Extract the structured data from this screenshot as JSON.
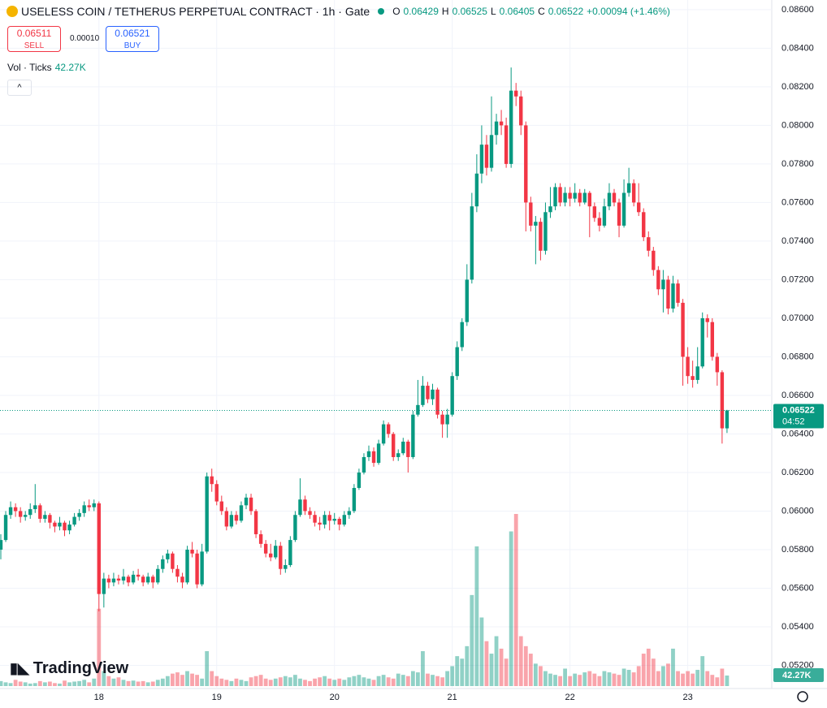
{
  "chart_data": {
    "type": "candlestick",
    "title": "USELESS COIN / TETHERUS PERPETUAL CONTRACT · 1h · Gate",
    "legend": {
      "o_label": "O",
      "o": "0.06429",
      "h_label": "H",
      "h": "0.06525",
      "l_label": "L",
      "l": "0.06405",
      "c_label": "C",
      "c": "0.06522",
      "change": "+0.00094 (+1.46%)"
    },
    "sell": {
      "price": "0.06511",
      "label": "SELL"
    },
    "spread": "0.00010",
    "buy": {
      "price": "0.06521",
      "label": "BUY"
    },
    "volume_title": "Vol · Ticks",
    "volume_label": "42.27K",
    "last_price_label": "0.06522",
    "countdown": "04:52",
    "brand": "TradingView",
    "up_color": "#089981",
    "down_color": "#f23645",
    "ylim": [
      0.0508,
      0.0865
    ],
    "yticks": [
      {
        "value": 0.052,
        "label": "0.05200"
      },
      {
        "value": 0.054,
        "label": "0.05400"
      },
      {
        "value": 0.056,
        "label": "0.05600"
      },
      {
        "value": 0.058,
        "label": "0.05800"
      },
      {
        "value": 0.06,
        "label": "0.06000"
      },
      {
        "value": 0.062,
        "label": "0.06200"
      },
      {
        "value": 0.064,
        "label": "0.06400"
      },
      {
        "value": 0.066,
        "label": "0.06600"
      },
      {
        "value": 0.068,
        "label": "0.06800"
      },
      {
        "value": 0.07,
        "label": "0.07000"
      },
      {
        "value": 0.072,
        "label": "0.07200"
      },
      {
        "value": 0.074,
        "label": "0.07400"
      },
      {
        "value": 0.076,
        "label": "0.07600"
      },
      {
        "value": 0.078,
        "label": "0.07800"
      },
      {
        "value": 0.08,
        "label": "0.08000"
      },
      {
        "value": 0.082,
        "label": "0.08200"
      },
      {
        "value": 0.084,
        "label": "0.08400"
      },
      {
        "value": 0.086,
        "label": "0.08600"
      }
    ],
    "day_labels": [
      "18",
      "19",
      "20",
      "21",
      "22",
      "23"
    ],
    "grid": true,
    "ohlc": [
      [
        0.058,
        0.0588,
        0.0575,
        0.0585
      ],
      [
        0.0585,
        0.06,
        0.0584,
        0.0598
      ],
      [
        0.0598,
        0.0605,
        0.0596,
        0.0602
      ],
      [
        0.0602,
        0.0604,
        0.0597,
        0.06
      ],
      [
        0.06,
        0.0602,
        0.0594,
        0.0597
      ],
      [
        0.0597,
        0.06,
        0.0595,
        0.0598
      ],
      [
        0.0598,
        0.0604,
        0.0596,
        0.0601
      ],
      [
        0.0601,
        0.0614,
        0.0599,
        0.0603
      ],
      [
        0.0603,
        0.0604,
        0.0594,
        0.0596
      ],
      [
        0.0596,
        0.06,
        0.0594,
        0.0598
      ],
      [
        0.0598,
        0.0599,
        0.0591,
        0.0594
      ],
      [
        0.0594,
        0.0595,
        0.0589,
        0.0592
      ],
      [
        0.0592,
        0.0597,
        0.059,
        0.0594
      ],
      [
        0.0594,
        0.0595,
        0.0587,
        0.059
      ],
      [
        0.059,
        0.0595,
        0.0588,
        0.0593
      ],
      [
        0.0593,
        0.0599,
        0.0592,
        0.0597
      ],
      [
        0.0597,
        0.0601,
        0.0595,
        0.0599
      ],
      [
        0.0599,
        0.0605,
        0.0597,
        0.0603
      ],
      [
        0.0603,
        0.0606,
        0.06,
        0.0602
      ],
      [
        0.0602,
        0.0606,
        0.06,
        0.0604
      ],
      [
        0.0604,
        0.0605,
        0.0548,
        0.0557
      ],
      [
        0.0557,
        0.0568,
        0.055,
        0.0565
      ],
      [
        0.0565,
        0.0567,
        0.056,
        0.0563
      ],
      [
        0.0563,
        0.0568,
        0.0561,
        0.0565
      ],
      [
        0.0565,
        0.0567,
        0.0562,
        0.0564
      ],
      [
        0.0564,
        0.057,
        0.0562,
        0.0566
      ],
      [
        0.0566,
        0.0567,
        0.0561,
        0.0563
      ],
      [
        0.0563,
        0.0569,
        0.0562,
        0.0567
      ],
      [
        0.0567,
        0.057,
        0.0564,
        0.0566
      ],
      [
        0.0566,
        0.0567,
        0.0561,
        0.0563
      ],
      [
        0.0563,
        0.0568,
        0.0562,
        0.0566
      ],
      [
        0.0566,
        0.0567,
        0.056,
        0.0563
      ],
      [
        0.0563,
        0.0572,
        0.0562,
        0.057
      ],
      [
        0.057,
        0.0577,
        0.0568,
        0.0575
      ],
      [
        0.0575,
        0.058,
        0.0573,
        0.0578
      ],
      [
        0.0578,
        0.0579,
        0.0568,
        0.057
      ],
      [
        0.057,
        0.0572,
        0.0563,
        0.0566
      ],
      [
        0.0566,
        0.0568,
        0.056,
        0.0563
      ],
      [
        0.0563,
        0.0582,
        0.0562,
        0.058
      ],
      [
        0.058,
        0.0584,
        0.0576,
        0.0578
      ],
      [
        0.0578,
        0.058,
        0.056,
        0.0562
      ],
      [
        0.0562,
        0.0583,
        0.0561,
        0.0579
      ],
      [
        0.0579,
        0.062,
        0.0578,
        0.0618
      ],
      [
        0.0618,
        0.0622,
        0.061,
        0.0614
      ],
      [
        0.0614,
        0.0616,
        0.0603,
        0.0605
      ],
      [
        0.0605,
        0.0608,
        0.0598,
        0.06
      ],
      [
        0.06,
        0.0602,
        0.059,
        0.0592
      ],
      [
        0.0592,
        0.06,
        0.0591,
        0.0598
      ],
      [
        0.0598,
        0.06,
        0.0593,
        0.0595
      ],
      [
        0.0595,
        0.0605,
        0.0594,
        0.0603
      ],
      [
        0.0603,
        0.0609,
        0.0601,
        0.0607
      ],
      [
        0.0607,
        0.0609,
        0.0598,
        0.06
      ],
      [
        0.06,
        0.0601,
        0.0586,
        0.0588
      ],
      [
        0.0588,
        0.059,
        0.0581,
        0.0583
      ],
      [
        0.0583,
        0.0585,
        0.0576,
        0.0578
      ],
      [
        0.0578,
        0.0583,
        0.0574,
        0.0576
      ],
      [
        0.0576,
        0.0585,
        0.0575,
        0.0582
      ],
      [
        0.0582,
        0.0584,
        0.0567,
        0.057
      ],
      [
        0.057,
        0.0575,
        0.0568,
        0.0572
      ],
      [
        0.0572,
        0.0587,
        0.0571,
        0.0585
      ],
      [
        0.0585,
        0.06,
        0.0584,
        0.0598
      ],
      [
        0.0598,
        0.0617,
        0.0597,
        0.0606
      ],
      [
        0.0606,
        0.0608,
        0.0598,
        0.06
      ],
      [
        0.06,
        0.0602,
        0.0596,
        0.0598
      ],
      [
        0.0598,
        0.06,
        0.0592,
        0.0594
      ],
      [
        0.0594,
        0.0597,
        0.059,
        0.0593
      ],
      [
        0.0593,
        0.06,
        0.0591,
        0.0598
      ],
      [
        0.0598,
        0.06,
        0.059,
        0.0595
      ],
      [
        0.0595,
        0.0599,
        0.0593,
        0.0596
      ],
      [
        0.0596,
        0.0597,
        0.059,
        0.0593
      ],
      [
        0.0593,
        0.06,
        0.0592,
        0.0598
      ],
      [
        0.0598,
        0.0602,
        0.0596,
        0.06
      ],
      [
        0.06,
        0.0614,
        0.0599,
        0.0612
      ],
      [
        0.0612,
        0.0622,
        0.0611,
        0.062
      ],
      [
        0.062,
        0.063,
        0.0619,
        0.0628
      ],
      [
        0.0628,
        0.0634,
        0.0626,
        0.0631
      ],
      [
        0.0631,
        0.0633,
        0.0623,
        0.0625
      ],
      [
        0.0625,
        0.0637,
        0.0624,
        0.0635
      ],
      [
        0.0635,
        0.0647,
        0.0634,
        0.0645
      ],
      [
        0.0645,
        0.0646,
        0.0638,
        0.064
      ],
      [
        0.064,
        0.0641,
        0.0626,
        0.0628
      ],
      [
        0.0628,
        0.0632,
        0.0626,
        0.063
      ],
      [
        0.063,
        0.0638,
        0.0629,
        0.0636
      ],
      [
        0.0636,
        0.0637,
        0.062,
        0.0628
      ],
      [
        0.0628,
        0.0652,
        0.0627,
        0.065
      ],
      [
        0.065,
        0.0668,
        0.0649,
        0.0655
      ],
      [
        0.0655,
        0.067,
        0.0654,
        0.0665
      ],
      [
        0.0665,
        0.0667,
        0.0656,
        0.0658
      ],
      [
        0.0658,
        0.0666,
        0.0655,
        0.0663
      ],
      [
        0.0663,
        0.0664,
        0.0648,
        0.065
      ],
      [
        0.065,
        0.0652,
        0.0638,
        0.0645
      ],
      [
        0.0645,
        0.0653,
        0.0638,
        0.065
      ],
      [
        0.065,
        0.0672,
        0.0649,
        0.067
      ],
      [
        0.067,
        0.0688,
        0.0668,
        0.0685
      ],
      [
        0.0685,
        0.07,
        0.0683,
        0.0698
      ],
      [
        0.0698,
        0.0728,
        0.0696,
        0.072
      ],
      [
        0.072,
        0.0765,
        0.0718,
        0.0758
      ],
      [
        0.0758,
        0.0785,
        0.0755,
        0.0775
      ],
      [
        0.0775,
        0.08,
        0.077,
        0.079
      ],
      [
        0.079,
        0.0795,
        0.0774,
        0.0778
      ],
      [
        0.0778,
        0.0815,
        0.0776,
        0.0795
      ],
      [
        0.0795,
        0.0806,
        0.079,
        0.0802
      ],
      [
        0.0802,
        0.0808,
        0.0795,
        0.08
      ],
      [
        0.08,
        0.0804,
        0.0778,
        0.078
      ],
      [
        0.078,
        0.083,
        0.0778,
        0.0818
      ],
      [
        0.0818,
        0.0822,
        0.081,
        0.0815
      ],
      [
        0.0815,
        0.0818,
        0.0795,
        0.08
      ],
      [
        0.08,
        0.0802,
        0.0745,
        0.076
      ],
      [
        0.076,
        0.0763,
        0.0745,
        0.0748
      ],
      [
        0.0748,
        0.0753,
        0.0728,
        0.075
      ],
      [
        0.075,
        0.0752,
        0.073,
        0.0735
      ],
      [
        0.0735,
        0.076,
        0.0733,
        0.0755
      ],
      [
        0.0755,
        0.0768,
        0.0752,
        0.0758
      ],
      [
        0.0758,
        0.077,
        0.0756,
        0.0768
      ],
      [
        0.0768,
        0.077,
        0.0758,
        0.076
      ],
      [
        0.076,
        0.0768,
        0.0758,
        0.0765
      ],
      [
        0.0765,
        0.0768,
        0.0758,
        0.0762
      ],
      [
        0.0762,
        0.077,
        0.076,
        0.0765
      ],
      [
        0.0765,
        0.0767,
        0.0758,
        0.076
      ],
      [
        0.076,
        0.0767,
        0.0759,
        0.0765
      ],
      [
        0.0765,
        0.0766,
        0.0742,
        0.0758
      ],
      [
        0.0758,
        0.076,
        0.075,
        0.0752
      ],
      [
        0.0752,
        0.0755,
        0.0745,
        0.0748
      ],
      [
        0.0748,
        0.0762,
        0.0747,
        0.0758
      ],
      [
        0.0758,
        0.077,
        0.0756,
        0.0765
      ],
      [
        0.0765,
        0.0767,
        0.0758,
        0.076
      ],
      [
        0.076,
        0.0762,
        0.0742,
        0.0748
      ],
      [
        0.0748,
        0.0772,
        0.0747,
        0.0765
      ],
      [
        0.0765,
        0.0778,
        0.0763,
        0.077
      ],
      [
        0.077,
        0.0772,
        0.0758,
        0.076
      ],
      [
        0.076,
        0.077,
        0.0753,
        0.0755
      ],
      [
        0.0755,
        0.0757,
        0.074,
        0.0742
      ],
      [
        0.0742,
        0.0745,
        0.0732,
        0.0735
      ],
      [
        0.0735,
        0.0737,
        0.0722,
        0.0725
      ],
      [
        0.0725,
        0.0727,
        0.0712,
        0.0715
      ],
      [
        0.0715,
        0.0725,
        0.0703,
        0.072
      ],
      [
        0.072,
        0.0722,
        0.0702,
        0.0705
      ],
      [
        0.0705,
        0.0722,
        0.0703,
        0.0718
      ],
      [
        0.0718,
        0.072,
        0.0706,
        0.0708
      ],
      [
        0.0708,
        0.071,
        0.0665,
        0.068
      ],
      [
        0.068,
        0.0685,
        0.0666,
        0.067
      ],
      [
        0.067,
        0.0678,
        0.0664,
        0.0668
      ],
      [
        0.0668,
        0.0685,
        0.0666,
        0.0675
      ],
      [
        0.0675,
        0.0703,
        0.0674,
        0.07
      ],
      [
        0.07,
        0.0702,
        0.069,
        0.0698
      ],
      [
        0.0698,
        0.07,
        0.0678,
        0.068
      ],
      [
        0.068,
        0.0682,
        0.0665,
        0.0672
      ],
      [
        0.0672,
        0.0673,
        0.0635,
        0.06429
      ],
      [
        0.06429,
        0.06525,
        0.06405,
        0.06522
      ]
    ],
    "volume": [
      20000,
      15000,
      12000,
      25000,
      18000,
      15000,
      10000,
      12000,
      20000,
      15000,
      18000,
      12000,
      10000,
      22000,
      15000,
      18000,
      20000,
      25000,
      15000,
      30000,
      310000,
      60000,
      40000,
      30000,
      35000,
      25000,
      20000,
      22000,
      18000,
      20000,
      15000,
      18000,
      25000,
      30000,
      40000,
      50000,
      55000,
      45000,
      60000,
      50000,
      45000,
      30000,
      140000,
      60000,
      40000,
      30000,
      25000,
      20000,
      30000,
      25000,
      20000,
      35000,
      40000,
      45000,
      30000,
      25000,
      30000,
      35000,
      40000,
      35000,
      45000,
      30000,
      25000,
      20000,
      30000,
      35000,
      40000,
      30000,
      25000,
      30000,
      25000,
      35000,
      40000,
      45000,
      35000,
      30000,
      25000,
      40000,
      45000,
      35000,
      30000,
      50000,
      45000,
      40000,
      60000,
      55000,
      140000,
      50000,
      45000,
      40000,
      35000,
      60000,
      80000,
      120000,
      110000,
      160000,
      365000,
      560000,
      275000,
      180000,
      130000,
      200000,
      150000,
      110000,
      620000,
      690000,
      200000,
      160000,
      130000,
      90000,
      80000,
      60000,
      50000,
      45000,
      40000,
      70000,
      40000,
      50000,
      45000,
      55000,
      60000,
      50000,
      40000,
      60000,
      55000,
      50000,
      45000,
      70000,
      65000,
      55000,
      80000,
      130000,
      150000,
      110000,
      60000,
      80000,
      90000,
      150000,
      60000,
      50000,
      60000,
      50000,
      65000,
      120000,
      60000,
      45000,
      35000,
      70000,
      42270
    ]
  }
}
